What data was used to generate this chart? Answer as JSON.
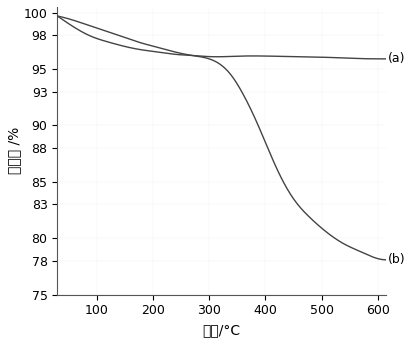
{
  "xlabel": "温度/°C",
  "ylabel": "失重率 /%",
  "xlim": [
    30,
    615
  ],
  "ylim": [
    75,
    100.5
  ],
  "yticks": [
    75,
    78,
    80,
    83,
    85,
    88,
    90,
    93,
    95,
    98,
    100
  ],
  "xticks": [
    100,
    200,
    300,
    400,
    500,
    600
  ],
  "curve_a_x": [
    30,
    60,
    90,
    120,
    150,
    180,
    210,
    240,
    270,
    300,
    330,
    360,
    400,
    450,
    500,
    550,
    600,
    615
  ],
  "curve_a_y": [
    99.7,
    98.7,
    97.9,
    97.4,
    97.0,
    96.7,
    96.5,
    96.3,
    96.2,
    96.1,
    96.1,
    96.15,
    96.15,
    96.1,
    96.05,
    95.95,
    95.9,
    95.9
  ],
  "curve_b_x": [
    30,
    60,
    90,
    120,
    150,
    180,
    210,
    240,
    270,
    300,
    320,
    340,
    360,
    380,
    400,
    420,
    450,
    480,
    510,
    540,
    570,
    600,
    615
  ],
  "curve_b_y": [
    99.7,
    99.3,
    98.8,
    98.3,
    97.8,
    97.3,
    96.9,
    96.5,
    96.2,
    95.9,
    95.4,
    94.4,
    92.8,
    90.8,
    88.5,
    86.2,
    83.5,
    81.8,
    80.5,
    79.5,
    78.8,
    78.2,
    78.1
  ],
  "label_a": "(a)",
  "label_b": "(b)",
  "line_color": "#444444",
  "bg_color": "#ffffff",
  "dot_color_pink": "#ffb6c1",
  "dot_color_green": "#90ee90",
  "font_size_tick": 9,
  "font_size_label": 10,
  "font_size_annotation": 9
}
